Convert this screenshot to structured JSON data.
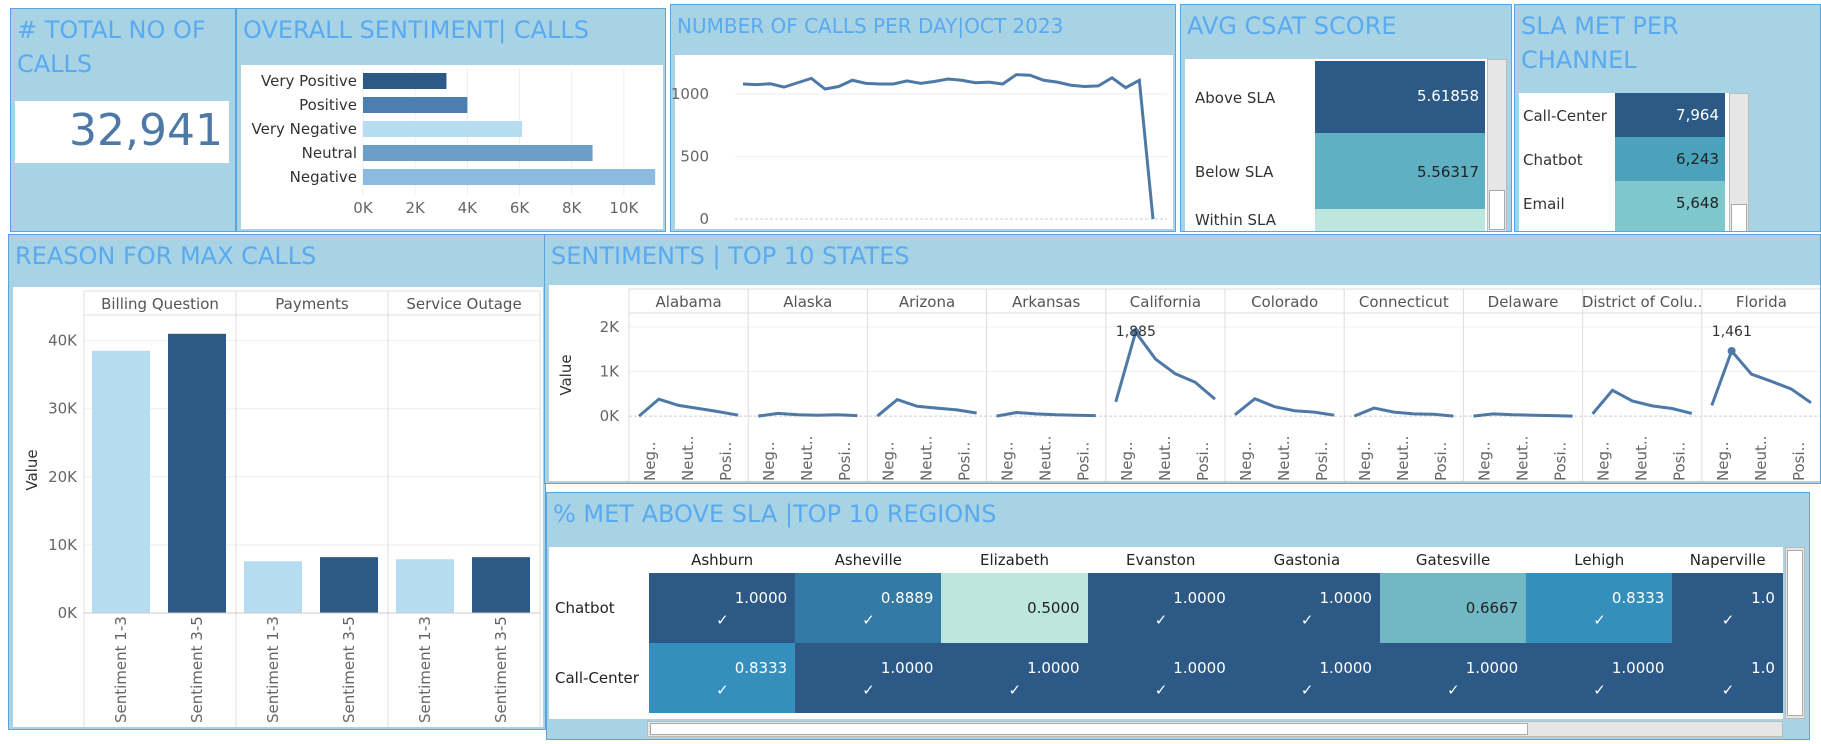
{
  "colors": {
    "title": "#59aaf0",
    "panel": "#a8d3e4",
    "line": "#4e79a7",
    "dark": "#2c5985",
    "light": "#b5dcf0",
    "teal1": "#358fbd",
    "teal2": "#71b7c4",
    "mint": "#bde6dd"
  },
  "kpi": {
    "title": "# TOTAL NO OF CALLS",
    "value": "32,941"
  },
  "sentiment": {
    "title": "OVERALL SENTIMENT| CALLS",
    "chart_data": {
      "type": "bar",
      "orientation": "horizontal",
      "categories": [
        "Very Positive",
        "Positive",
        "Very Negative",
        "Neutral",
        "Negative"
      ],
      "values": [
        3200,
        4000,
        6100,
        8800,
        11200
      ],
      "colors": [
        "#2c5985",
        "#4a7fb0",
        "#b5dcf0",
        "#6b9ec8",
        "#8dbbe0"
      ],
      "xlim": [
        0,
        11500
      ],
      "ticks": [
        0,
        2000,
        4000,
        6000,
        8000,
        10000
      ],
      "tick_labels": [
        "0K",
        "2K",
        "4K",
        "6K",
        "8K",
        "10K"
      ]
    }
  },
  "calls_per_day": {
    "title": "NUMBER OF CALLS PER DAY|OCT 2023",
    "chart_data": {
      "type": "line",
      "values": [
        1080,
        1075,
        1082,
        1055,
        1090,
        1125,
        1040,
        1060,
        1110,
        1085,
        1080,
        1080,
        1105,
        1085,
        1100,
        1120,
        1110,
        1090,
        1095,
        1080,
        1155,
        1150,
        1110,
        1095,
        1070,
        1060,
        1065,
        1130,
        1050,
        1110,
        0
      ],
      "ylim": [
        0,
        1200
      ],
      "ticks": [
        0,
        500,
        1000
      ],
      "tick_labels": [
        "0",
        "500",
        "1000"
      ]
    }
  },
  "csat": {
    "title": "AVG CSAT SCORE",
    "rows": [
      {
        "label": "Above SLA",
        "value": "5.61858"
      },
      {
        "label": "Below SLA",
        "value": "5.56317"
      },
      {
        "label": "Within SLA",
        "value": ""
      }
    ]
  },
  "sla_channel": {
    "title": "SLA MET PER CHANNEL",
    "rows": [
      {
        "label": "Call-Center",
        "value": "7,964"
      },
      {
        "label": "Chatbot",
        "value": "6,243"
      },
      {
        "label": "Email",
        "value": "5,648"
      }
    ]
  },
  "reason": {
    "title": "REASON FOR MAX CALLS",
    "chart_data": {
      "type": "bar",
      "categories": [
        "Billing Question",
        "Payments",
        "Service Outage"
      ],
      "series": [
        {
          "name": "Sentiment 1-3",
          "values": [
            38500,
            7600,
            7900
          ],
          "color": "#b5dcf0"
        },
        {
          "name": "Sentiment 3-5",
          "values": [
            41000,
            8200,
            8200
          ],
          "color": "#2c5985"
        }
      ],
      "ylabel": "Value",
      "ylim": [
        0,
        42000
      ],
      "ticks": [
        0,
        10000,
        20000,
        30000,
        40000
      ],
      "tick_labels": [
        "0K",
        "10K",
        "20K",
        "30K",
        "40K"
      ]
    }
  },
  "states": {
    "title": "SENTIMENTS | TOP 10 STATES",
    "chart_data": {
      "type": "line",
      "ylabel": "Value",
      "ylim": [
        -200,
        2000
      ],
      "ticks": [
        0,
        1000,
        2000
      ],
      "tick_labels": [
        "0K",
        "1K",
        "2K"
      ],
      "x_labels": [
        "Neg..",
        "Neut..",
        "Posi.."
      ],
      "panels": [
        {
          "name": "Alabama",
          "values": [
            0,
            380,
            240,
            170,
            100,
            20
          ],
          "label": ""
        },
        {
          "name": "Alaska",
          "values": [
            0,
            60,
            30,
            20,
            30,
            10
          ],
          "label": ""
        },
        {
          "name": "Arizona",
          "values": [
            0,
            370,
            220,
            180,
            140,
            70
          ],
          "label": ""
        },
        {
          "name": "Arkansas",
          "values": [
            0,
            80,
            50,
            30,
            20,
            10
          ],
          "label": ""
        },
        {
          "name": "California",
          "values": [
            320,
            1885,
            1280,
            950,
            760,
            380
          ],
          "label": "1,885"
        },
        {
          "name": "Colorado",
          "values": [
            30,
            390,
            210,
            120,
            90,
            20
          ],
          "label": ""
        },
        {
          "name": "Connecticut",
          "values": [
            0,
            180,
            90,
            50,
            40,
            0
          ],
          "label": ""
        },
        {
          "name": "Delaware",
          "values": [
            0,
            50,
            30,
            20,
            10,
            0
          ],
          "label": ""
        },
        {
          "name": "District of Colu..",
          "values": [
            50,
            580,
            340,
            230,
            170,
            60
          ],
          "label": ""
        },
        {
          "name": "Florida",
          "values": [
            240,
            1461,
            940,
            780,
            610,
            300
          ],
          "label": "1,461"
        }
      ]
    }
  },
  "sla_regions": {
    "title": "% MET ABOVE SLA |TOP 10 REGIONS",
    "columns": [
      "Ashburn",
      "Asheville",
      "Elizabeth",
      "Evanston",
      "Gastonia",
      "Gatesville",
      "Lehigh",
      "Naperville"
    ],
    "rows": [
      {
        "label": "Chatbot",
        "values": [
          "1.0000",
          "0.8889",
          "0.5000",
          "1.0000",
          "1.0000",
          "0.6667",
          "0.8333",
          "1.0"
        ],
        "checks": [
          "✓",
          "✓",
          "",
          "✓",
          "✓",
          "",
          "✓",
          "✓"
        ],
        "colors": [
          "#2c5985",
          "#347aa6",
          "#bde6dd",
          "#2c5985",
          "#2c5985",
          "#71b7c4",
          "#358fbd",
          "#2c5985"
        ]
      },
      {
        "label": "Call-Center",
        "values": [
          "0.8333",
          "1.0000",
          "1.0000",
          "1.0000",
          "1.0000",
          "1.0000",
          "1.0000",
          "1.0"
        ],
        "checks": [
          "✓",
          "✓",
          "✓",
          "✓",
          "✓",
          "✓",
          "✓",
          "✓"
        ],
        "colors": [
          "#358fbd",
          "#2c5985",
          "#2c5985",
          "#2c5985",
          "#2c5985",
          "#2c5985",
          "#2c5985",
          "#2c5985"
        ]
      }
    ]
  }
}
